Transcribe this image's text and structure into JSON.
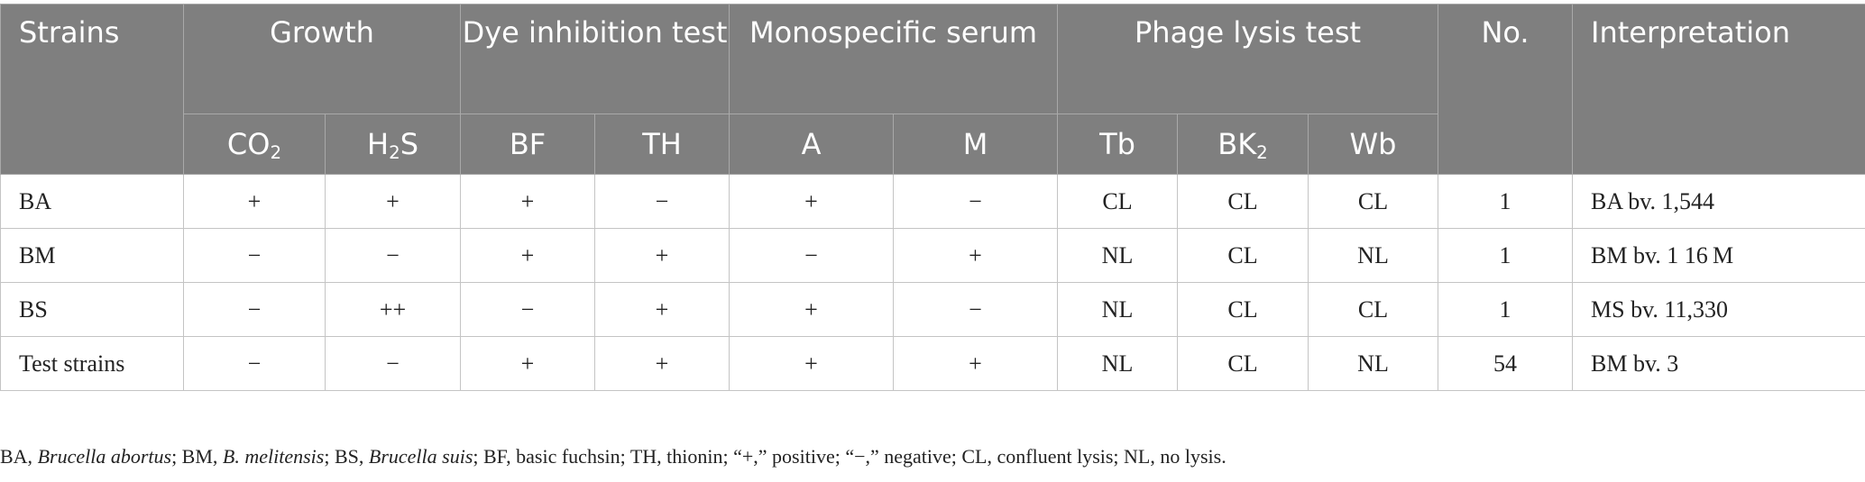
{
  "table": {
    "headers": {
      "strains": "Strains",
      "growth": "Growth",
      "dye": "Dye inhibition test",
      "serum": "Monospecific serum",
      "phage": "Phage lysis test",
      "no": "No.",
      "interpretation": "Interpretation"
    },
    "subheaders": {
      "co2": {
        "base": "CO",
        "sub": "2"
      },
      "h2s": {
        "pre": "H",
        "sub": "2",
        "post": "S"
      },
      "bf": "BF",
      "th": "TH",
      "a": "A",
      "m": "M",
      "tb": "Tb",
      "bk2": {
        "base": "BK",
        "sub": "2"
      },
      "wb": "Wb"
    },
    "rows": [
      {
        "strain": "BA",
        "co2": "+",
        "h2s": "+",
        "bf": "+",
        "th": "−",
        "a": "+",
        "m": "−",
        "tb": "CL",
        "bk2": "CL",
        "wb": "CL",
        "no": "1",
        "interp": "BA bv. 1,544"
      },
      {
        "strain": "BM",
        "co2": "−",
        "h2s": "−",
        "bf": "+",
        "th": "+",
        "a": "−",
        "m": "+",
        "tb": "NL",
        "bk2": "CL",
        "wb": "NL",
        "no": "1",
        "interp": "BM bv. 1 16 M"
      },
      {
        "strain": "BS",
        "co2": "−",
        "h2s": "++",
        "bf": "−",
        "th": "+",
        "a": "+",
        "m": "−",
        "tb": "NL",
        "bk2": "CL",
        "wb": "CL",
        "no": "1",
        "interp": "MS bv. 11,330"
      },
      {
        "strain": "Test strains",
        "co2": "−",
        "h2s": "−",
        "bf": "+",
        "th": "+",
        "a": "+",
        "m": "+",
        "tb": "NL",
        "bk2": "CL",
        "wb": "NL",
        "no": "54",
        "interp": "BM bv. 3"
      }
    ]
  },
  "footnote": {
    "p1": "BA, ",
    "ba": "Brucella abortus",
    "p2": "; BM, ",
    "bm": "B. melitensis",
    "p3": "; BS, ",
    "bs": "Brucella suis",
    "p4": "; BF, basic fuchsin; TH, thionin; “+,” positive; “−,” negative; CL, confluent lysis; NL, no lysis."
  }
}
